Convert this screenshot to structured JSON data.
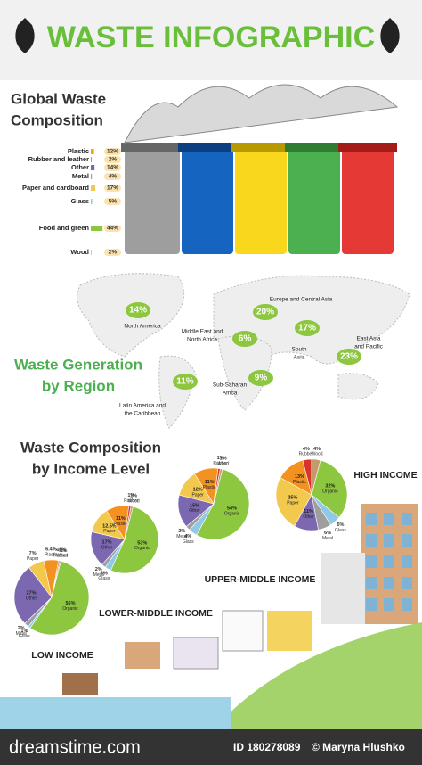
{
  "header": {
    "title": "WASTE INFOGRAPHIC"
  },
  "global_composition": {
    "title": [
      "Global Waste",
      "Composition"
    ],
    "items": [
      {
        "name": "Plastic",
        "value": 12,
        "label": "12%",
        "color": "#f7a21b"
      },
      {
        "name": "Rubber and leather",
        "value": 2,
        "label": "2%",
        "color": "#8b4a2b"
      },
      {
        "name": "Other",
        "value": 14,
        "label": "14%",
        "color": "#7b68b0"
      },
      {
        "name": "Metal",
        "value": 4,
        "label": "4%",
        "color": "#9e9e9e"
      },
      {
        "name": "Paper and cardboard",
        "value": 17,
        "label": "17%",
        "color": "#f2c94c"
      },
      {
        "name": "Glass",
        "value": 5,
        "label": "5%",
        "color": "#8ecae6"
      },
      {
        "name": "Food and green",
        "value": 44,
        "label": "44%",
        "color": "#8dc63f"
      },
      {
        "name": "Wood",
        "value": 2,
        "label": "2%",
        "color": "#c49a6c"
      }
    ]
  },
  "region": {
    "title": [
      "Waste Generation",
      "by Region"
    ],
    "regions": [
      {
        "name": [
          "North America"
        ],
        "value": 14,
        "label": "14%"
      },
      {
        "name": [
          "Europe and Central Asia"
        ],
        "value": 20,
        "label": "20%"
      },
      {
        "name": [
          "Middle East and",
          "North Africa"
        ],
        "value": 6,
        "label": "6%"
      },
      {
        "name": [
          "South",
          "Asia"
        ],
        "value": 17,
        "label": "17%"
      },
      {
        "name": [
          "East Asia",
          "and Pacific"
        ],
        "value": 23,
        "label": "23%"
      },
      {
        "name": [
          "Latin America and",
          "the Caribbean"
        ],
        "value": 11,
        "label": "11%"
      },
      {
        "name": [
          "Sub-Saharan",
          "Africa"
        ],
        "value": 9,
        "label": "9%"
      }
    ]
  },
  "income": {
    "title": [
      "Waste Composition",
      "by Income Level"
    ],
    "colors": {
      "Organic": "#8dc63f",
      "Glass": "#8ecae6",
      "Metal": "#9e9e9e",
      "Other": "#7b68b0",
      "Paper": "#f2c94c",
      "Plastic": "#f39221",
      "Rubber": "#d9342b",
      "Wood": "#c49a6c"
    },
    "levels": [
      {
        "name": "LOW INCOME",
        "slices": [
          {
            "name": "Organic",
            "value": 56,
            "label": "56%"
          },
          {
            "name": "Glass",
            "value": 1,
            "label": "1%"
          },
          {
            "name": "Metal",
            "value": 2,
            "label": "2%"
          },
          {
            "name": "Other",
            "value": 27,
            "label": "27%"
          },
          {
            "name": "Paper",
            "value": 7,
            "label": "7%"
          },
          {
            "name": "Plastic",
            "value": 6.4,
            "label": "6.4%"
          },
          {
            "name": "Rubber",
            "value": 0.5,
            "label": "<1%"
          },
          {
            "name": "Wood",
            "value": 0.5,
            "label": "<1%"
          }
        ]
      },
      {
        "name": "LOWER-MIDDLE INCOME",
        "slices": [
          {
            "name": "Organic",
            "value": 53,
            "label": "53%"
          },
          {
            "name": "Glass",
            "value": 3,
            "label": "3%"
          },
          {
            "name": "Metal",
            "value": 2,
            "label": "2%"
          },
          {
            "name": "Other",
            "value": 17,
            "label": "17%"
          },
          {
            "name": "Paper",
            "value": 12.5,
            "label": "12.5%"
          },
          {
            "name": "Plastic",
            "value": 11,
            "label": "11%"
          },
          {
            "name": "Rubber",
            "value": 1,
            "label": "1%"
          },
          {
            "name": "Wood",
            "value": 1,
            "label": "1%"
          }
        ]
      },
      {
        "name": "UPPER-MIDDLE INCOME",
        "slices": [
          {
            "name": "Organic",
            "value": 54,
            "label": "54%"
          },
          {
            "name": "Glass",
            "value": 4,
            "label": "4%"
          },
          {
            "name": "Metal",
            "value": 2,
            "label": "2%"
          },
          {
            "name": "Other",
            "value": 15,
            "label": "15%"
          },
          {
            "name": "Paper",
            "value": 12,
            "label": "12%"
          },
          {
            "name": "Plastic",
            "value": 11,
            "label": "11%"
          },
          {
            "name": "Rubber",
            "value": 1,
            "label": "1%"
          },
          {
            "name": "Wood",
            "value": 1,
            "label": "1%"
          }
        ]
      },
      {
        "name": "HIGH INCOME",
        "slices": [
          {
            "name": "Organic",
            "value": 32,
            "label": "32%"
          },
          {
            "name": "Glass",
            "value": 5,
            "label": "5%"
          },
          {
            "name": "Metal",
            "value": 6,
            "label": "6%"
          },
          {
            "name": "Other",
            "value": 11,
            "label": "11%"
          },
          {
            "name": "Paper",
            "value": 25,
            "label": "25%"
          },
          {
            "name": "Plastic",
            "value": 13,
            "label": "13%"
          },
          {
            "name": "Rubber",
            "value": 4,
            "label": "4%"
          },
          {
            "name": "Wood",
            "value": 4,
            "label": "4%"
          }
        ]
      }
    ]
  },
  "footer": {
    "site": "dreamstime.com",
    "id": "ID 180278089",
    "author": "© Maryna Hlushko"
  }
}
